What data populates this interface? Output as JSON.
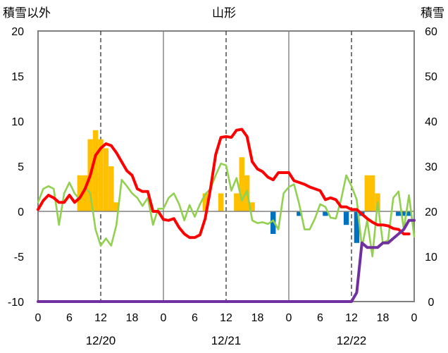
{
  "chart_data": {
    "type": "bar+line",
    "title": "山形",
    "left_axis_label": "積雪以外",
    "right_axis_label": "積雪",
    "left_ylim": [
      -10,
      20
    ],
    "left_yticks": [
      -10,
      -5,
      0,
      5,
      10,
      15,
      20
    ],
    "right_ylim": [
      0,
      60
    ],
    "right_yticks": [
      0,
      10,
      20,
      30,
      40,
      50,
      60
    ],
    "x_hours": [
      0,
      72
    ],
    "x_tick_labels": [
      "0",
      "6",
      "12",
      "18",
      "0",
      "6",
      "12",
      "18",
      "0",
      "6",
      "12",
      "18",
      "0"
    ],
    "date_labels": [
      "12/20",
      "12/21",
      "12/22"
    ],
    "grid": "vertical lines at each 0h (solid) and 12h (dashed)",
    "colors": {
      "snowfall_bar": "#FFC000",
      "negative_bar": "#0070C0",
      "temperature": "#FF0000",
      "green_series": "#92D050",
      "snow_depth": "#7030A0",
      "frame": "#808080",
      "grid": "#404040"
    },
    "bars": [
      {
        "hour": 8,
        "value": 4
      },
      {
        "hour": 9,
        "value": 4
      },
      {
        "hour": 10,
        "value": 8
      },
      {
        "hour": 11,
        "value": 9
      },
      {
        "hour": 12,
        "value": 8
      },
      {
        "hour": 13,
        "value": 7
      },
      {
        "hour": 14,
        "value": 5
      },
      {
        "hour": 15,
        "value": 1
      },
      {
        "hour": 32,
        "value": 2
      },
      {
        "hour": 35,
        "value": 2
      },
      {
        "hour": 38,
        "value": 2
      },
      {
        "hour": 39,
        "value": 6
      },
      {
        "hour": 40,
        "value": 4
      },
      {
        "hour": 41,
        "value": 1
      },
      {
        "hour": 45,
        "value": -2.5
      },
      {
        "hour": 50,
        "value": -0.5
      },
      {
        "hour": 55,
        "value": -0.5
      },
      {
        "hour": 59,
        "value": -1.5
      },
      {
        "hour": 61,
        "value": -3.5
      },
      {
        "hour": 62,
        "value": -0.5
      },
      {
        "hour": 63,
        "value": 4
      },
      {
        "hour": 64,
        "value": 4
      },
      {
        "hour": 65,
        "value": 2
      },
      {
        "hour": 69,
        "value": -0.5
      },
      {
        "hour": 70,
        "value": -0.5
      },
      {
        "hour": 71,
        "value": -0.5
      }
    ],
    "series": [
      {
        "axis": "left",
        "color": "#FF0000",
        "points": [
          [
            0,
            0.2
          ],
          [
            1,
            1.2
          ],
          [
            2,
            1.8
          ],
          [
            3,
            1.5
          ],
          [
            4,
            1.0
          ],
          [
            5,
            1.0
          ],
          [
            6,
            1.8
          ],
          [
            7,
            1.0
          ],
          [
            8,
            1.5
          ],
          [
            9,
            2.5
          ],
          [
            10,
            4.0
          ],
          [
            11,
            6.2
          ],
          [
            12,
            7.0
          ],
          [
            13,
            7.5
          ],
          [
            14,
            7.3
          ],
          [
            15,
            6.5
          ],
          [
            16,
            5.5
          ],
          [
            17,
            4.5
          ],
          [
            18,
            4.0
          ],
          [
            19,
            2.5
          ],
          [
            20,
            2.2
          ],
          [
            21,
            2.2
          ],
          [
            22,
            0
          ],
          [
            23,
            0
          ],
          [
            24,
            -0.9
          ],
          [
            25,
            -1.0
          ],
          [
            26,
            -0.8
          ],
          [
            27,
            -1.8
          ],
          [
            28,
            -2.5
          ],
          [
            29,
            -2.9
          ],
          [
            30,
            -2.9
          ],
          [
            31,
            -2.6
          ],
          [
            32,
            -0.8
          ],
          [
            33,
            2.5
          ],
          [
            34,
            6.3
          ],
          [
            35,
            8.2
          ],
          [
            36,
            8.3
          ],
          [
            37,
            8.2
          ],
          [
            38,
            9.0
          ],
          [
            39,
            9.1
          ],
          [
            40,
            8.3
          ],
          [
            41,
            5.5
          ],
          [
            42,
            4.7
          ],
          [
            43,
            4.4
          ],
          [
            44,
            3.8
          ],
          [
            45,
            3.5
          ],
          [
            46,
            4.3
          ],
          [
            47,
            4.3
          ],
          [
            48,
            4.3
          ],
          [
            49,
            3.4
          ],
          [
            50,
            3.2
          ],
          [
            51,
            3.0
          ],
          [
            52,
            2.7
          ],
          [
            53,
            2.5
          ],
          [
            54,
            2.3
          ],
          [
            55,
            1.3
          ],
          [
            56,
            1.5
          ],
          [
            57,
            1.3
          ],
          [
            58,
            0.5
          ],
          [
            59,
            0.5
          ],
          [
            60,
            0.2
          ],
          [
            61,
            0.2
          ],
          [
            62,
            -0.3
          ],
          [
            63,
            -0.8
          ],
          [
            64,
            -1.2
          ],
          [
            65,
            -1.5
          ],
          [
            66,
            -1.5
          ],
          [
            67,
            -1.6
          ],
          [
            68,
            -1.9
          ],
          [
            69,
            -2.0
          ],
          [
            70,
            -2.5
          ],
          [
            71,
            -2.5
          ]
        ]
      },
      {
        "axis": "left",
        "color": "#92D050",
        "points": [
          [
            0,
            1.0
          ],
          [
            1,
            2.5
          ],
          [
            2,
            2.8
          ],
          [
            3,
            2.5
          ],
          [
            4,
            -1.5
          ],
          [
            5,
            2.0
          ],
          [
            6,
            3.2
          ],
          [
            7,
            2.0
          ],
          [
            8,
            1.3
          ],
          [
            9,
            2.7
          ],
          [
            10,
            2.0
          ],
          [
            11,
            -2.0
          ],
          [
            12,
            -3.8
          ],
          [
            13,
            -3.0
          ],
          [
            14,
            -3.8
          ],
          [
            15,
            -1.5
          ],
          [
            16,
            3.5
          ],
          [
            17,
            2.8
          ],
          [
            18,
            2.0
          ],
          [
            19,
            1.5
          ],
          [
            20,
            0.6
          ],
          [
            21,
            1.5
          ],
          [
            22,
            -1.5
          ],
          [
            23,
            0.3
          ],
          [
            24,
            0.3
          ],
          [
            25,
            1.5
          ],
          [
            26,
            2.0
          ],
          [
            27,
            0.8
          ],
          [
            28,
            -1.0
          ],
          [
            29,
            0.7
          ],
          [
            30,
            -0.6
          ],
          [
            31,
            0.8
          ],
          [
            32,
            1.9
          ],
          [
            33,
            2.5
          ],
          [
            34,
            4.0
          ],
          [
            35,
            5.3
          ],
          [
            36,
            5.1
          ],
          [
            37,
            2.3
          ],
          [
            38,
            3.7
          ],
          [
            39,
            1.2
          ],
          [
            40,
            2.3
          ],
          [
            41,
            -1.0
          ],
          [
            42,
            -1.3
          ],
          [
            43,
            -1.2
          ],
          [
            44,
            -1.4
          ],
          [
            45,
            -1.0
          ],
          [
            46,
            -2.0
          ],
          [
            47,
            2.0
          ],
          [
            48,
            2.7
          ],
          [
            49,
            3.0
          ],
          [
            50,
            0.8
          ],
          [
            51,
            -2.0
          ],
          [
            52,
            -2.0
          ],
          [
            53,
            -0.8
          ],
          [
            54,
            0.8
          ],
          [
            55,
            0.5
          ],
          [
            56,
            -0.7
          ],
          [
            57,
            -0.8
          ],
          [
            58,
            1.3
          ],
          [
            59,
            4.0
          ],
          [
            60,
            2.8
          ],
          [
            61,
            1.3
          ],
          [
            62,
            -4.0
          ],
          [
            63,
            -1.0
          ],
          [
            64,
            -5.0
          ],
          [
            65,
            1.0
          ],
          [
            66,
            -3.5
          ],
          [
            67,
            -3.2
          ],
          [
            68,
            1.5
          ],
          [
            69,
            2.2
          ],
          [
            70,
            -2.0
          ],
          [
            71,
            1.8
          ],
          [
            72,
            -2.8
          ]
        ]
      },
      {
        "axis": "right",
        "color": "#7030A0",
        "points": [
          [
            0,
            0
          ],
          [
            60,
            0
          ],
          [
            61,
            2
          ],
          [
            62,
            13
          ],
          [
            63,
            12
          ],
          [
            64,
            12
          ],
          [
            65,
            12
          ],
          [
            66,
            13
          ],
          [
            67,
            13
          ],
          [
            68,
            14
          ],
          [
            69,
            15
          ],
          [
            70,
            16
          ],
          [
            71,
            18
          ],
          [
            72,
            18
          ]
        ]
      }
    ]
  }
}
